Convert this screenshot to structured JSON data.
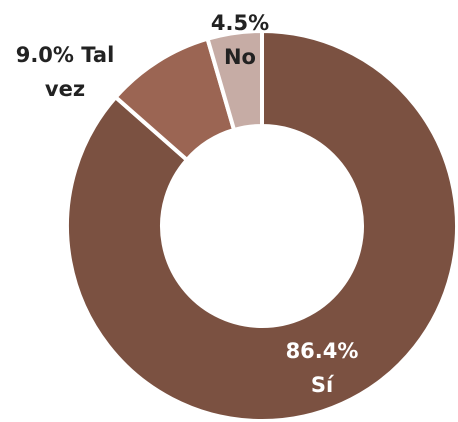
{
  "chart_data": {
    "type": "donut",
    "categories": [
      "Sí",
      "Tal vez",
      "No"
    ],
    "values": [
      86.4,
      9.0,
      4.5
    ],
    "value_labels": [
      "86.4%",
      "9.0%",
      "4.5%"
    ],
    "colors": [
      "#7b5141",
      "#9b6553",
      "#c6aca5"
    ]
  }
}
